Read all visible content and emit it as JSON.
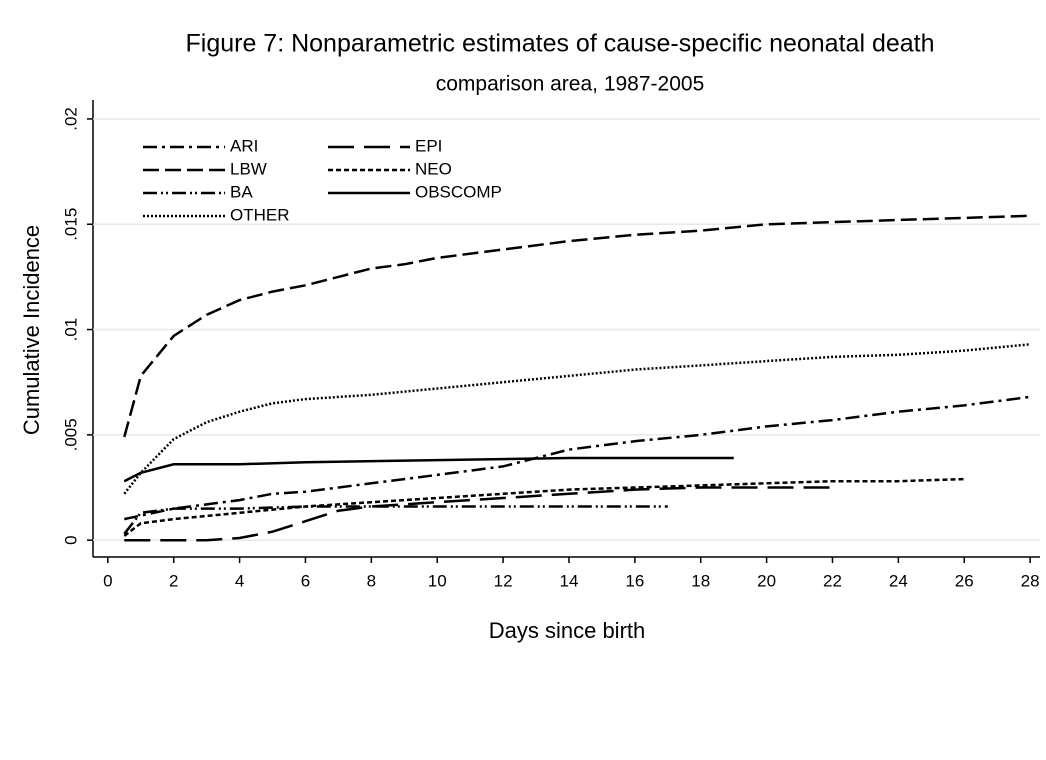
{
  "chart_data": {
    "type": "line",
    "title": "Figure 7: Nonparametric estimates of cause-specific neonatal death",
    "subtitle": "comparison area, 1987-2005",
    "x_label": "Days since birth",
    "y_label": "Cumulative Incidence",
    "xlim": [
      -0.45,
      28.3
    ],
    "ylim": [
      -0.0008,
      0.0209
    ],
    "xticks": [
      0,
      2,
      4,
      6,
      8,
      10,
      12,
      14,
      16,
      18,
      20,
      22,
      24,
      26,
      28
    ],
    "yticks": [
      0,
      {
        "value": 0.005,
        "label": ".005"
      },
      {
        "value": 0.01,
        "label": ".01"
      },
      {
        "value": 0.015,
        "label": ".015"
      },
      {
        "value": 0.02,
        "label": ".02"
      }
    ],
    "grid": true,
    "legend": "top-left",
    "series": [
      {
        "name": "ARI",
        "color": "#000000",
        "style": "dash-dot",
        "x": [
          0.5,
          2,
          4,
          5,
          6,
          8,
          10,
          12,
          14,
          16,
          18,
          20,
          22,
          24,
          26,
          28
        ],
        "values": [
          0.001,
          0.0015,
          0.0019,
          0.0022,
          0.0023,
          0.0027,
          0.0031,
          0.0035,
          0.0043,
          0.0047,
          0.005,
          0.0054,
          0.0057,
          0.0061,
          0.0064,
          0.0068
        ]
      },
      {
        "name": "EPI",
        "color": "#000000",
        "style": "long-dash",
        "x": [
          0.5,
          1,
          2,
          3,
          4,
          5,
          6,
          7,
          8,
          10,
          12,
          14,
          16,
          18,
          20,
          22
        ],
        "values": [
          0,
          0,
          0,
          0,
          0.0001,
          0.0004,
          0.0009,
          0.0014,
          0.0016,
          0.0018,
          0.002,
          0.0022,
          0.0024,
          0.0025,
          0.0025,
          0.0025
        ]
      },
      {
        "name": "LBW",
        "color": "#000000",
        "style": "dash",
        "x": [
          0.5,
          1,
          2,
          3,
          4,
          5,
          6,
          7,
          8,
          9,
          10,
          12,
          14,
          16,
          18,
          20,
          22,
          24,
          26,
          28
        ],
        "values": [
          0.0049,
          0.0078,
          0.0097,
          0.0107,
          0.0114,
          0.0118,
          0.0121,
          0.0125,
          0.0129,
          0.0131,
          0.0134,
          0.0138,
          0.0142,
          0.0145,
          0.0147,
          0.015,
          0.0151,
          0.0152,
          0.0153,
          0.0154
        ]
      },
      {
        "name": "NEO",
        "color": "#000000",
        "style": "short-dash",
        "x": [
          0.5,
          1,
          2,
          4,
          6,
          8,
          10,
          12,
          14,
          16,
          18,
          20,
          22,
          24,
          26
        ],
        "values": [
          0.0002,
          0.0008,
          0.001,
          0.0013,
          0.0016,
          0.0018,
          0.002,
          0.0022,
          0.0024,
          0.0025,
          0.0026,
          0.0027,
          0.0028,
          0.0028,
          0.0029
        ]
      },
      {
        "name": "BA",
        "color": "#000000",
        "style": "dash-dot-dot",
        "x": [
          0.5,
          1,
          2,
          4,
          6,
          8,
          10,
          12,
          14,
          17
        ],
        "values": [
          0.0003,
          0.0013,
          0.0015,
          0.0015,
          0.0016,
          0.0016,
          0.0016,
          0.0016,
          0.0016,
          0.0016
        ]
      },
      {
        "name": "OBSCOMP",
        "color": "#000000",
        "style": "solid",
        "x": [
          0.5,
          1,
          2,
          4,
          6,
          10,
          14,
          19
        ],
        "values": [
          0.0028,
          0.0032,
          0.0036,
          0.0036,
          0.0037,
          0.0038,
          0.0039,
          0.0039
        ]
      },
      {
        "name": "OTHER",
        "color": "#000000",
        "style": "dot",
        "x": [
          0.5,
          1,
          2,
          3,
          4,
          5,
          6,
          8,
          10,
          12,
          14,
          16,
          18,
          20,
          22,
          24,
          26,
          28
        ],
        "values": [
          0.0022,
          0.0032,
          0.0048,
          0.0056,
          0.0061,
          0.0065,
          0.0067,
          0.0069,
          0.0072,
          0.0075,
          0.0078,
          0.0081,
          0.0083,
          0.0085,
          0.0087,
          0.0088,
          0.009,
          0.0093
        ]
      }
    ]
  }
}
